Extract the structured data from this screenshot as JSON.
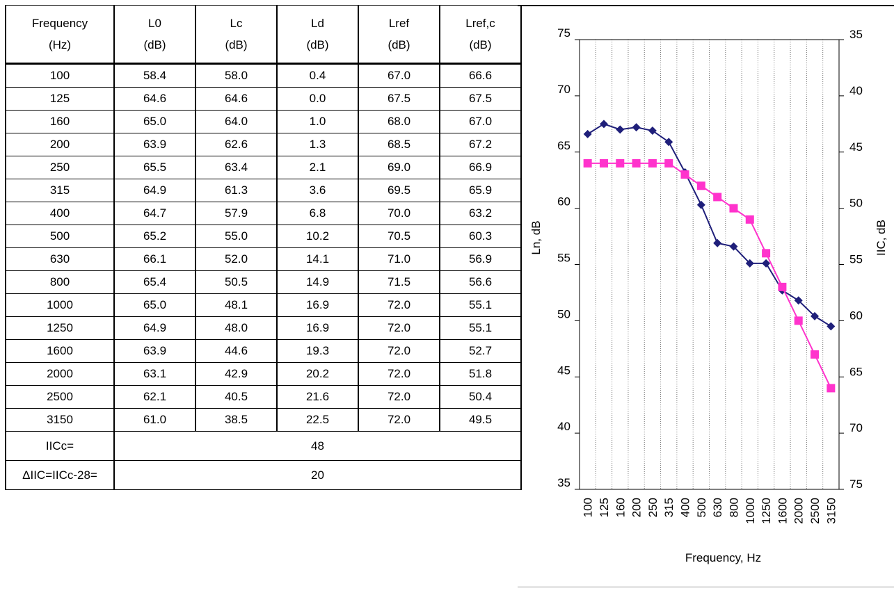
{
  "table": {
    "headers": [
      [
        "Frequency",
        "(Hz)"
      ],
      [
        "L0",
        "(dB)"
      ],
      [
        "Lc",
        "(dB)"
      ],
      [
        "Ld",
        "(dB)"
      ],
      [
        "Lref",
        "(dB)"
      ],
      [
        "Lref,c",
        "(dB)"
      ]
    ],
    "rows": [
      [
        "100",
        "58.4",
        "58.0",
        "0.4",
        "67.0",
        "66.6"
      ],
      [
        "125",
        "64.6",
        "64.6",
        "0.0",
        "67.5",
        "67.5"
      ],
      [
        "160",
        "65.0",
        "64.0",
        "1.0",
        "68.0",
        "67.0"
      ],
      [
        "200",
        "63.9",
        "62.6",
        "1.3",
        "68.5",
        "67.2"
      ],
      [
        "250",
        "65.5",
        "63.4",
        "2.1",
        "69.0",
        "66.9"
      ],
      [
        "315",
        "64.9",
        "61.3",
        "3.6",
        "69.5",
        "65.9"
      ],
      [
        "400",
        "64.7",
        "57.9",
        "6.8",
        "70.0",
        "63.2"
      ],
      [
        "500",
        "65.2",
        "55.0",
        "10.2",
        "70.5",
        "60.3"
      ],
      [
        "630",
        "66.1",
        "52.0",
        "14.1",
        "71.0",
        "56.9"
      ],
      [
        "800",
        "65.4",
        "50.5",
        "14.9",
        "71.5",
        "56.6"
      ],
      [
        "1000",
        "65.0",
        "48.1",
        "16.9",
        "72.0",
        "55.1"
      ],
      [
        "1250",
        "64.9",
        "48.0",
        "16.9",
        "72.0",
        "55.1"
      ],
      [
        "1600",
        "63.9",
        "44.6",
        "19.3",
        "72.0",
        "52.7"
      ],
      [
        "2000",
        "63.1",
        "42.9",
        "20.2",
        "72.0",
        "51.8"
      ],
      [
        "2500",
        "62.1",
        "40.5",
        "21.6",
        "72.0",
        "50.4"
      ],
      [
        "3150",
        "61.0",
        "38.5",
        "22.5",
        "72.0",
        "49.5"
      ]
    ],
    "summary": [
      {
        "label": "IICc=",
        "value": "48"
      },
      {
        "label": "ΔIIC=IICc-28=",
        "value": "20"
      }
    ]
  },
  "chart_data": {
    "type": "line",
    "categories": [
      "100",
      "125",
      "160",
      "200",
      "250",
      "315",
      "400",
      "500",
      "630",
      "800",
      "1000",
      "1250",
      "1600",
      "2000",
      "2500",
      "3150"
    ],
    "series": [
      {
        "color": "#1f1f7a",
        "marker": "diamond",
        "values": [
          66.6,
          67.5,
          67.0,
          67.2,
          66.9,
          65.9,
          63.2,
          60.3,
          56.9,
          56.6,
          55.1,
          55.1,
          52.7,
          51.8,
          50.4,
          49.5
        ]
      },
      {
        "color": "#ff33cc",
        "marker": "square",
        "values": [
          64,
          64,
          64,
          64,
          64,
          64,
          63,
          62,
          61,
          60,
          59,
          56,
          53,
          50,
          47,
          44
        ]
      }
    ],
    "xlabel": "Frequency, Hz",
    "ylabel": "Ln, dB",
    "ylabel_right": "IIC, dB",
    "ylim": [
      35,
      75
    ],
    "y_ticks": [
      75,
      70,
      65,
      60,
      55,
      50,
      45,
      40,
      35
    ],
    "y_right_ticks": [
      35,
      40,
      45,
      50,
      55,
      60,
      65,
      70,
      75
    ],
    "grid": "vertical dotted"
  }
}
